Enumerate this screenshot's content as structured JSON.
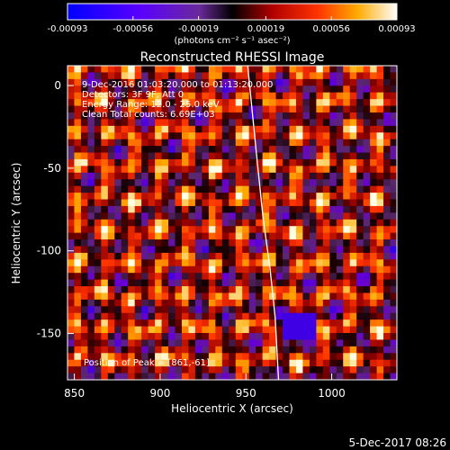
{
  "colorbar": {
    "ticks": [
      "-0.00093",
      "-0.00056",
      "-0.00019",
      "0.00019",
      "0.00056",
      "0.00093"
    ],
    "unit_label": "(photons cm⁻² s⁻¹ asec⁻²)"
  },
  "chart_data": {
    "type": "heatmap",
    "title": "Reconstructed RHESSI Image",
    "xlabel": "Heliocentric X (arcsec)",
    "ylabel": "Heliocentric Y (arcsec)",
    "xlim": [
      846,
      1038
    ],
    "ylim": [
      -178,
      12
    ],
    "x_ticks": [
      850,
      900,
      950,
      1000
    ],
    "y_ticks": [
      0,
      -50,
      -100,
      -150
    ],
    "colorscale_range": [
      -0.00093,
      0.00093
    ],
    "limb_curve": {
      "x": [
        969,
        967,
        964,
        960,
        956,
        951
      ],
      "y": [
        -178,
        -140,
        -110,
        -80,
        -40,
        12
      ]
    },
    "annotations": {
      "time": "9-Dec-2016 01:03:20.000 to 01:13:20.000",
      "detectors": "Detectors: 3F 9F, Att 0",
      "energy": "Energy Range: 12.0 - 25.0 keV",
      "clean": "Clean     Total counts: 6.69E+03",
      "peak": "Position of Peak = [861,-61]"
    }
  },
  "footer": {
    "timestamp": "5-Dec-2017 08:26"
  }
}
